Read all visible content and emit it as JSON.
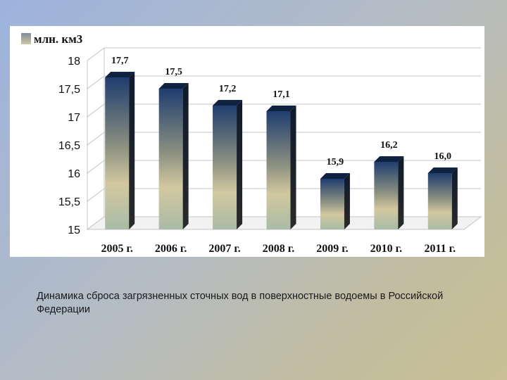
{
  "chart_data": {
    "type": "bar",
    "legend": "млн. км3",
    "categories": [
      "2005 г.",
      "2006 г.",
      "2007 г.",
      "2008 г.",
      "2009 г.",
      "2010 г.",
      "2011 г."
    ],
    "values": [
      17.7,
      17.5,
      17.2,
      17.1,
      15.9,
      16.2,
      16.0
    ],
    "value_labels": [
      "17,7",
      "17,5",
      "17,2",
      "17,1",
      "15,9",
      "16,2",
      "16,0"
    ],
    "y_ticks": [
      "15",
      "15,5",
      "16",
      "16,5",
      "17",
      "17,5",
      "18"
    ],
    "ylim": [
      15,
      18
    ],
    "grid": true,
    "legend_position": "top-left",
    "colors": {
      "bar_top": "#1f3d6e",
      "bar_mid": "#c9c09a",
      "bar_bottom": "#9fb5a0",
      "grid": "#c8c8c8",
      "text": "#111111"
    }
  },
  "caption": "Динамика сброса загрязненных сточных вод в поверхностные водоемы в Российской Федерации"
}
